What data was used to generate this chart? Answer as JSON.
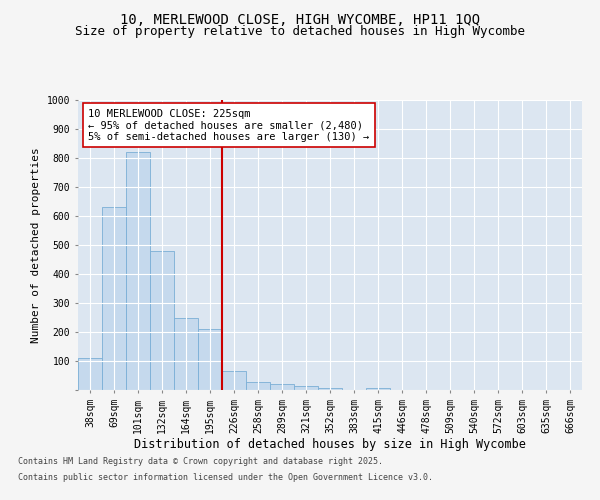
{
  "title_line1": "10, MERLEWOOD CLOSE, HIGH WYCOMBE, HP11 1QQ",
  "title_line2": "Size of property relative to detached houses in High Wycombe",
  "xlabel": "Distribution of detached houses by size in High Wycombe",
  "ylabel": "Number of detached properties",
  "categories": [
    "38sqm",
    "69sqm",
    "101sqm",
    "132sqm",
    "164sqm",
    "195sqm",
    "226sqm",
    "258sqm",
    "289sqm",
    "321sqm",
    "352sqm",
    "383sqm",
    "415sqm",
    "446sqm",
    "478sqm",
    "509sqm",
    "540sqm",
    "572sqm",
    "603sqm",
    "635sqm",
    "666sqm"
  ],
  "values": [
    110,
    630,
    820,
    480,
    250,
    210,
    65,
    27,
    20,
    13,
    7,
    0,
    8,
    0,
    0,
    0,
    0,
    0,
    0,
    0,
    0
  ],
  "bar_color": "#c5d9ed",
  "bar_edge_color": "#7aaed6",
  "vline_index": 6,
  "vline_color": "#cc0000",
  "annotation_text": "10 MERLEWOOD CLOSE: 225sqm\n← 95% of detached houses are smaller (2,480)\n5% of semi-detached houses are larger (130) →",
  "annotation_box_facecolor": "#ffffff",
  "annotation_box_edgecolor": "#cc0000",
  "ylim": [
    0,
    1000
  ],
  "yticks": [
    0,
    100,
    200,
    300,
    400,
    500,
    600,
    700,
    800,
    900,
    1000
  ],
  "plot_bg_color": "#dce6f1",
  "fig_bg_color": "#f5f5f5",
  "grid_color": "#ffffff",
  "footer_line1": "Contains HM Land Registry data © Crown copyright and database right 2025.",
  "footer_line2": "Contains public sector information licensed under the Open Government Licence v3.0.",
  "title_fontsize": 10,
  "subtitle_fontsize": 9,
  "ylabel_fontsize": 8,
  "xlabel_fontsize": 8.5,
  "tick_fontsize": 7,
  "annotation_fontsize": 7.5,
  "footer_fontsize": 6
}
